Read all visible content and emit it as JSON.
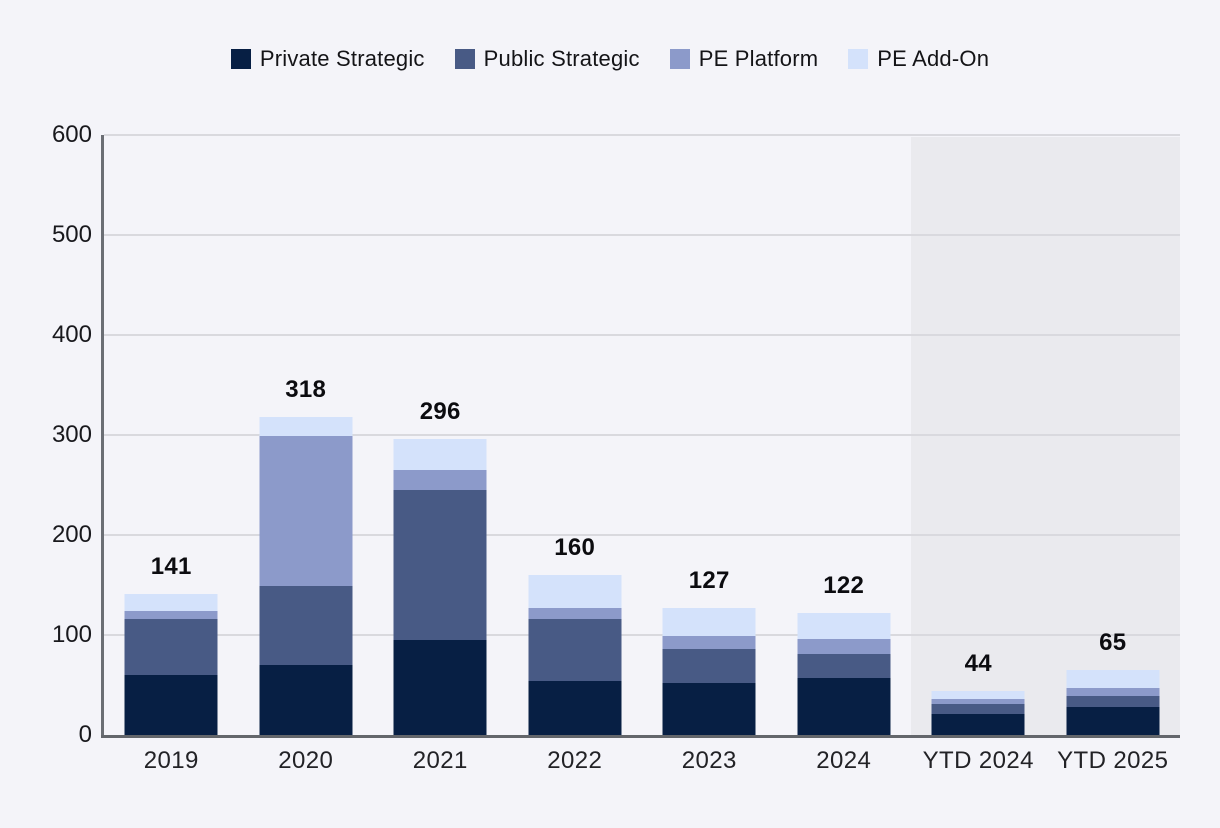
{
  "legend": {
    "position": "top",
    "items": [
      {
        "label": "Private Strategic",
        "color": "#071f44"
      },
      {
        "label": "Public Strategic",
        "color": "#485a85"
      },
      {
        "label": "PE Platform",
        "color": "#8c9aca"
      },
      {
        "label": "PE Add-On",
        "color": "#d4e2fb"
      }
    ]
  },
  "chart_data": {
    "type": "bar",
    "subtype": "stacked",
    "categories": [
      "2019",
      "2020",
      "2021",
      "2022",
      "2023",
      "2024",
      "YTD 2024",
      "YTD 2025"
    ],
    "series": [
      {
        "name": "Private Strategic",
        "color": "#071f44",
        "values": [
          60,
          70,
          95,
          54,
          52,
          57,
          21,
          28
        ]
      },
      {
        "name": "Public Strategic",
        "color": "#485a85",
        "values": [
          56,
          79,
          150,
          62,
          34,
          24,
          10,
          11
        ]
      },
      {
        "name": "PE Platform",
        "color": "#8c9aca",
        "values": [
          8,
          150,
          20,
          11,
          13,
          15,
          5,
          8
        ]
      },
      {
        "name": "PE Add-On",
        "color": "#d4e2fb",
        "values": [
          17,
          19,
          31,
          33,
          28,
          26,
          8,
          18
        ]
      }
    ],
    "totals": [
      141,
      318,
      296,
      160,
      127,
      122,
      44,
      65
    ],
    "title": "",
    "xlabel": "",
    "ylabel": "",
    "y_ticks": [
      0,
      100,
      200,
      300,
      400,
      500,
      600
    ],
    "ylim": [
      0,
      600
    ],
    "grid": true,
    "legend_position": "top",
    "highlight_region": {
      "start_category_index": 6,
      "end_category_index": 7,
      "color": "#eaeaee"
    }
  },
  "style_colors": {
    "background": "#f4f4f9",
    "gridline": "#d9d9de",
    "axis_line": "#6b6e74",
    "tick_text": "#19191d",
    "total_text": "#0c0c10"
  }
}
